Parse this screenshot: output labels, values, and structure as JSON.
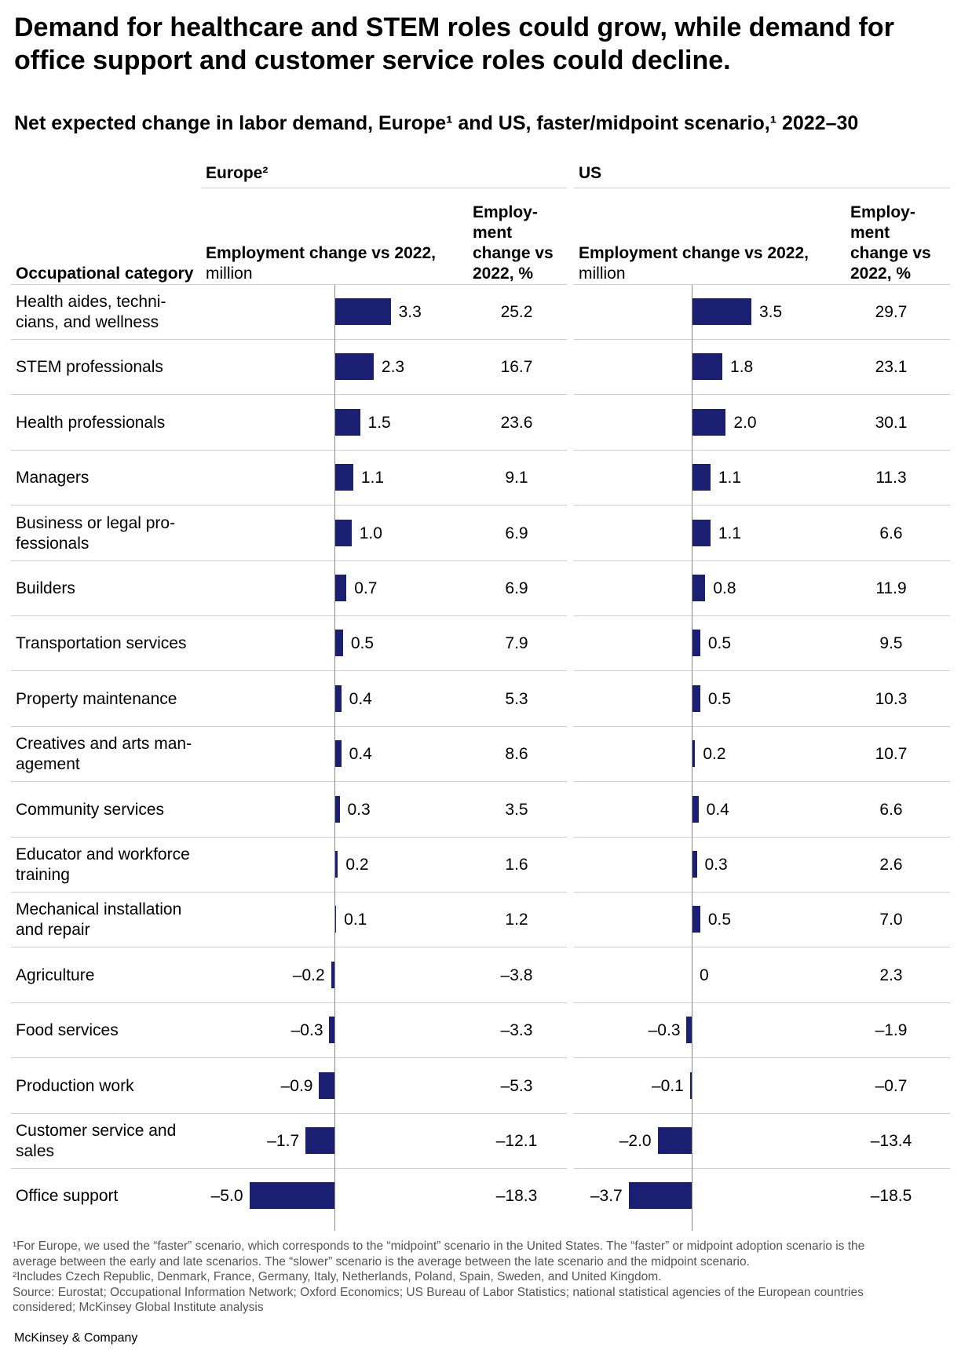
{
  "title": "Demand for healthcare and STEM roles could grow, while demand for office support and customer service roles could decline.",
  "subtitle": "Net expected change in labor demand, Europe¹ and US, faster/midpoint scenario,¹ 2022–30",
  "headers": {
    "category": "Occupational category",
    "europe": "Europe²",
    "us": "US",
    "change_bold": "Employment change vs 2022,",
    "change_unit": "million",
    "pct_header": [
      "Employ-",
      "ment",
      "change vs",
      "2022, %"
    ]
  },
  "chart_data": {
    "type": "bar",
    "orientation": "horizontal",
    "categories": [
      "Health aides, techni-\ncians, and wellness",
      "STEM professionals",
      "Health professionals",
      "Managers",
      "Business or legal pro-\nfessionals",
      "Builders",
      "Transportation services",
      "Property maintenance",
      "Creatives and arts man-\nagement",
      "Community services",
      "Educator and workforce\ntraining",
      "Mechanical installation\nand repair",
      "Agriculture",
      "Food services",
      "Production work",
      "Customer service and\nsales",
      "Office support"
    ],
    "series": [
      {
        "name": "Europe²",
        "values": [
          3.3,
          2.3,
          1.5,
          1.1,
          1.0,
          0.7,
          0.5,
          0.4,
          0.4,
          0.3,
          0.2,
          0.1,
          -0.2,
          -0.3,
          -0.9,
          -1.7,
          -5.0
        ],
        "labels": [
          "3.3",
          "2.3",
          "1.5",
          "1.1",
          "1.0",
          "0.7",
          "0.5",
          "0.4",
          "0.4",
          "0.3",
          "0.2",
          "0.1",
          "–0.2",
          "–0.3",
          "–0.9",
          "–1.7",
          "–5.0"
        ],
        "pct": [
          "25.2",
          "16.7",
          "23.6",
          "9.1",
          "6.9",
          "6.9",
          "7.9",
          "5.3",
          "8.6",
          "3.5",
          "1.6",
          "1.2",
          "–3.8",
          "–3.3",
          "–5.3",
          "–12.1",
          "–18.3"
        ]
      },
      {
        "name": "US",
        "values": [
          3.5,
          1.8,
          2.0,
          1.1,
          1.1,
          0.8,
          0.5,
          0.5,
          0.2,
          0.4,
          0.3,
          0.5,
          0,
          -0.3,
          -0.1,
          -2.0,
          -3.7
        ],
        "labels": [
          "3.5",
          "1.8",
          "2.0",
          "1.1",
          "1.1",
          "0.8",
          "0.5",
          "0.5",
          "0.2",
          "0.4",
          "0.3",
          "0.5",
          "0",
          "–0.3",
          "–0.1",
          "–2.0",
          "–3.7"
        ],
        "pct": [
          "29.7",
          "23.1",
          "30.1",
          "11.3",
          "6.6",
          "11.9",
          "9.5",
          "10.3",
          "10.7",
          "6.6",
          "2.6",
          "7.0",
          "2.3",
          "–1.9",
          "–0.7",
          "–13.4",
          "–18.5"
        ]
      }
    ],
    "bar_color": "#1b1f71"
  },
  "footnotes": [
    "¹For Europe, we used the “faster” scenario, which corresponds to the “midpoint” scenario in the United States. The “faster” or midpoint adoption scenario is the",
    " average between the early and late scenarios. The “slower” scenario is the average between the late scenario and the midpoint scenario.",
    "²Includes Czech Republic, Denmark, France, Germany, Italy, Netherlands, Poland, Spain, Sweden, and United Kingdom.",
    " Source: Eurostat; Occupational Information Network; Oxford Economics; US Bureau of Labor Statistics; national statistical agencies of the European countries",
    " considered; McKinsey Global Institute analysis"
  ],
  "brand": "McKinsey & Company"
}
